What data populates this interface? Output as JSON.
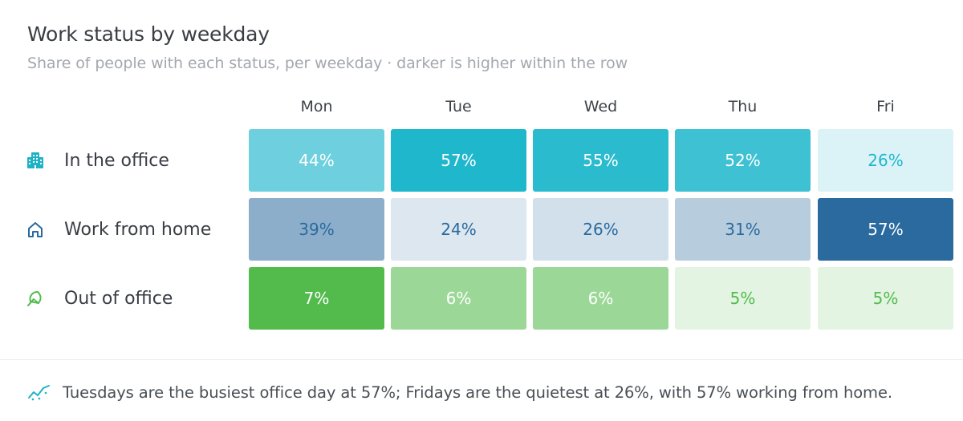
{
  "header": {
    "title": "Work status by weekday",
    "subtitle": "Share of people with each status, per weekday · darker is higher within the row"
  },
  "colors": {
    "office": "#1fb7cc",
    "home": "#2a6a9e",
    "out": "#52bb4c"
  },
  "chart_data": {
    "type": "heatmap",
    "title": "Work status by weekday",
    "subtitle": "Share of people with each status, per weekday · darker is higher within the row",
    "columns": [
      "Mon",
      "Tue",
      "Wed",
      "Thu",
      "Fri"
    ],
    "rows": [
      {
        "label": "In the office",
        "icon": "building-icon",
        "values": [
          44,
          57,
          55,
          52,
          26
        ],
        "display": [
          "44%",
          "57%",
          "55%",
          "52%",
          "26%"
        ]
      },
      {
        "label": "Work from home",
        "icon": "home-icon",
        "values": [
          39,
          24,
          26,
          31,
          57
        ],
        "display": [
          "39%",
          "24%",
          "26%",
          "31%",
          "57%"
        ]
      },
      {
        "label": "Out of office",
        "icon": "umbrella-icon",
        "values": [
          7,
          6,
          6,
          5,
          5
        ],
        "display": [
          "7%",
          "6%",
          "6%",
          "5%",
          "5%"
        ]
      }
    ],
    "unit": "%",
    "scale": "per-row"
  },
  "footer": {
    "icon": "trend-icon",
    "text": "Tuesdays are the busiest office day at 57%; Fridays are the quietest at 26%, with 57% working from home."
  }
}
